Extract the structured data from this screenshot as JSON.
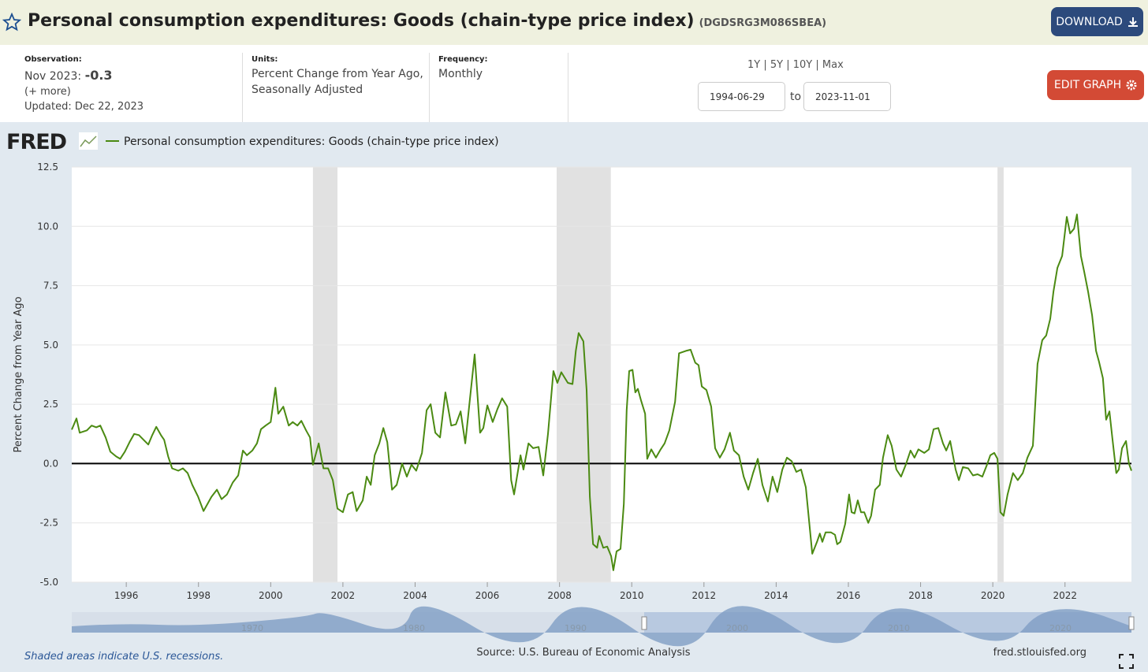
{
  "header": {
    "title": "Personal consumption expenditures: Goods (chain-type price index)",
    "series_id": "(DGDSRG3M086SBEA)",
    "download": "DOWNLOAD"
  },
  "info": {
    "observation_label": "Observation:",
    "observation_date": "Nov 2023:",
    "observation_value": "-0.3",
    "more": "(+ more)",
    "updated": "Updated: Dec 22, 2023",
    "units_label": "Units:",
    "units_lines": [
      "Percent Change from Year Ago,",
      "Seasonally Adjusted"
    ],
    "frequency_label": "Frequency:",
    "frequency": "Monthly",
    "ranges": [
      "1Y",
      "5Y",
      "10Y",
      "Max"
    ],
    "start_date": "1994-06-29",
    "to": "to",
    "end_date": "2023-11-01",
    "edit_graph": "EDIT GRAPH"
  },
  "logo": "FRED",
  "footer": {
    "note": "Shaded areas indicate U.S. recessions.",
    "source": "Source: U.S. Bureau of Economic Analysis",
    "site": "fred.stlouisfed.org"
  },
  "navigator_labels": [
    "1970",
    "1980",
    "1990",
    "2000",
    "2010",
    "2020"
  ],
  "chart_data": {
    "type": "line",
    "y_label": "Percent Change from Year Ago",
    "x": [
      1994.49,
      1994.62,
      1994.71,
      1994.91,
      1995.04,
      1995.17,
      1995.28,
      1995.43,
      1995.56,
      1995.72,
      1995.83,
      1995.96,
      1996.09,
      1996.22,
      1996.35,
      1996.48,
      1996.61,
      1996.72,
      1996.83,
      1996.96,
      1997.05,
      1997.16,
      1997.27,
      1997.44,
      1997.57,
      1997.7,
      1997.83,
      1997.99,
      1998.14,
      1998.25,
      1998.36,
      1998.51,
      1998.64,
      1998.79,
      1998.95,
      1999.1,
      1999.23,
      1999.34,
      1999.49,
      1999.62,
      1999.73,
      1999.86,
      2000.0,
      2000.13,
      2000.21,
      2000.35,
      2000.5,
      2000.61,
      2000.74,
      2000.85,
      2000.98,
      2001.09,
      2001.17,
      2001.33,
      2001.46,
      2001.59,
      2001.72,
      2001.85,
      2002.0,
      2002.14,
      2002.27,
      2002.38,
      2002.55,
      2002.66,
      2002.77,
      2002.88,
      2003.01,
      2003.12,
      2003.23,
      2003.36,
      2003.49,
      2003.64,
      2003.77,
      2003.9,
      2004.03,
      2004.19,
      2004.32,
      2004.43,
      2004.56,
      2004.69,
      2004.84,
      2005.0,
      2005.13,
      2005.26,
      2005.39,
      2005.52,
      2005.65,
      2005.8,
      2005.89,
      2006.0,
      2006.15,
      2006.28,
      2006.41,
      2006.55,
      2006.66,
      2006.74,
      2006.92,
      2007.0,
      2007.14,
      2007.27,
      2007.42,
      2007.55,
      2007.68,
      2007.83,
      2007.94,
      2008.05,
      2008.23,
      2008.36,
      2008.45,
      2008.53,
      2008.66,
      2008.75,
      2008.84,
      2008.93,
      2009.04,
      2009.1,
      2009.21,
      2009.32,
      2009.43,
      2009.49,
      2009.58,
      2009.69,
      2009.78,
      2009.86,
      2009.93,
      2010.02,
      2010.1,
      2010.17,
      2010.26,
      2010.37,
      2010.43,
      2010.54,
      2010.67,
      2010.8,
      2010.91,
      2011.04,
      2011.2,
      2011.31,
      2011.5,
      2011.63,
      2011.76,
      2011.85,
      2011.94,
      2012.07,
      2012.2,
      2012.31,
      2012.44,
      2012.57,
      2012.72,
      2012.83,
      2012.97,
      2013.1,
      2013.23,
      2013.36,
      2013.49,
      2013.62,
      2013.77,
      2013.9,
      2014.03,
      2014.17,
      2014.3,
      2014.43,
      2014.56,
      2014.69,
      2014.82,
      2015.0,
      2015.13,
      2015.21,
      2015.28,
      2015.37,
      2015.52,
      2015.63,
      2015.69,
      2015.78,
      2015.91,
      2016.02,
      2016.09,
      2016.17,
      2016.26,
      2016.35,
      2016.44,
      2016.55,
      2016.63,
      2016.74,
      2016.87,
      2016.96,
      2017.09,
      2017.2,
      2017.33,
      2017.46,
      2017.59,
      2017.72,
      2017.83,
      2017.94,
      2018.1,
      2018.23,
      2018.36,
      2018.49,
      2018.62,
      2018.71,
      2018.82,
      2018.97,
      2019.06,
      2019.17,
      2019.32,
      2019.45,
      2019.58,
      2019.71,
      2019.84,
      2019.93,
      2020.04,
      2020.13,
      2020.21,
      2020.3,
      2020.41,
      2020.56,
      2020.69,
      2020.83,
      2020.96,
      2021.11,
      2021.24,
      2021.37,
      2021.48,
      2021.59,
      2021.68,
      2021.79,
      2021.92,
      2022.05,
      2022.14,
      2022.25,
      2022.33,
      2022.44,
      2022.53,
      2022.64,
      2022.75,
      2022.86,
      2022.94,
      2023.05,
      2023.14,
      2023.23,
      2023.31,
      2023.42,
      2023.49,
      2023.58,
      2023.69,
      2023.77,
      2023.84
    ],
    "series": [
      {
        "name": "Personal consumption expenditures: Goods (chain-type price index)",
        "color": "#4b8a12",
        "values": [
          1.43,
          1.9,
          1.3,
          1.4,
          1.6,
          1.53,
          1.6,
          1.1,
          0.5,
          0.3,
          0.2,
          0.5,
          0.9,
          1.25,
          1.2,
          1.0,
          0.8,
          1.2,
          1.55,
          1.2,
          1.0,
          0.3,
          -0.2,
          -0.3,
          -0.2,
          -0.4,
          -0.9,
          -1.4,
          -2.0,
          -1.7,
          -1.4,
          -1.1,
          -1.5,
          -1.3,
          -0.8,
          -0.5,
          0.55,
          0.35,
          0.55,
          0.85,
          1.45,
          1.6,
          1.75,
          3.2,
          2.1,
          2.4,
          1.6,
          1.75,
          1.6,
          1.8,
          1.4,
          1.1,
          -0.05,
          0.85,
          -0.2,
          -0.2,
          -0.7,
          -1.9,
          -2.05,
          -1.3,
          -1.2,
          -2.0,
          -1.55,
          -0.55,
          -0.9,
          0.35,
          0.85,
          1.5,
          0.9,
          -1.1,
          -0.9,
          0.0,
          -0.55,
          -0.05,
          -0.3,
          0.45,
          2.25,
          2.5,
          1.3,
          1.1,
          3.0,
          1.6,
          1.65,
          2.2,
          0.85,
          2.75,
          4.6,
          1.3,
          1.5,
          2.45,
          1.75,
          2.3,
          2.75,
          2.4,
          -0.7,
          -1.3,
          0.35,
          -0.25,
          0.85,
          0.65,
          0.7,
          -0.5,
          1.25,
          3.9,
          3.4,
          3.85,
          3.4,
          3.35,
          4.75,
          5.5,
          5.15,
          3.1,
          -1.4,
          -3.4,
          -3.55,
          -3.05,
          -3.55,
          -3.5,
          -3.9,
          -4.5,
          -3.7,
          -3.6,
          -1.7,
          2.25,
          3.9,
          3.95,
          3.0,
          3.15,
          2.65,
          2.1,
          0.2,
          0.6,
          0.25,
          0.6,
          0.85,
          1.4,
          2.6,
          4.65,
          4.75,
          4.8,
          4.25,
          4.15,
          3.25,
          3.1,
          2.4,
          0.65,
          0.25,
          0.6,
          1.3,
          0.55,
          0.35,
          -0.55,
          -1.1,
          -0.4,
          0.2,
          -0.9,
          -1.6,
          -0.55,
          -1.2,
          -0.25,
          0.25,
          0.1,
          -0.35,
          -0.25,
          -1.0,
          -3.8,
          -3.3,
          -2.95,
          -3.3,
          -2.9,
          -2.9,
          -3.0,
          -3.4,
          -3.3,
          -2.55,
          -1.3,
          -2.05,
          -2.1,
          -1.55,
          -2.05,
          -2.05,
          -2.5,
          -2.2,
          -1.1,
          -0.9,
          0.25,
          1.2,
          0.75,
          -0.25,
          -0.55,
          -0.05,
          0.55,
          0.25,
          0.6,
          0.45,
          0.6,
          1.45,
          1.5,
          0.85,
          0.55,
          0.95,
          -0.25,
          -0.7,
          -0.15,
          -0.2,
          -0.5,
          -0.45,
          -0.55,
          -0.05,
          0.35,
          0.45,
          0.2,
          -2.05,
          -2.2,
          -1.3,
          -0.4,
          -0.7,
          -0.4,
          0.25,
          0.75,
          4.2,
          5.2,
          5.4,
          6.1,
          7.25,
          8.25,
          8.75,
          10.4,
          9.7,
          9.9,
          10.5,
          8.75,
          8.1,
          7.25,
          6.25,
          4.75,
          4.3,
          3.6,
          1.85,
          2.2,
          1.1,
          -0.4,
          -0.25,
          0.65,
          0.95,
          0.0,
          -0.3
        ]
      }
    ],
    "xlim": [
      1994.49,
      2023.84
    ],
    "xticks": [
      1996,
      1998,
      2000,
      2002,
      2004,
      2006,
      2008,
      2010,
      2012,
      2014,
      2016,
      2018,
      2020,
      2022
    ],
    "ylim": [
      -5,
      12.5
    ],
    "yticks": [
      {
        "value": -5,
        "label": "-5.0"
      },
      -2.5,
      {
        "value": 0,
        "label": "0.0"
      },
      2.5,
      {
        "value": 5,
        "label": "5.0"
      },
      7.5,
      {
        "value": 10,
        "label": "10.0"
      },
      12.5
    ],
    "grid": true,
    "recessions": [
      [
        2001.17,
        2001.85
      ],
      [
        2007.92,
        2009.42
      ],
      [
        2020.13,
        2020.3
      ]
    ],
    "recession_color": "#e1e1e1"
  }
}
